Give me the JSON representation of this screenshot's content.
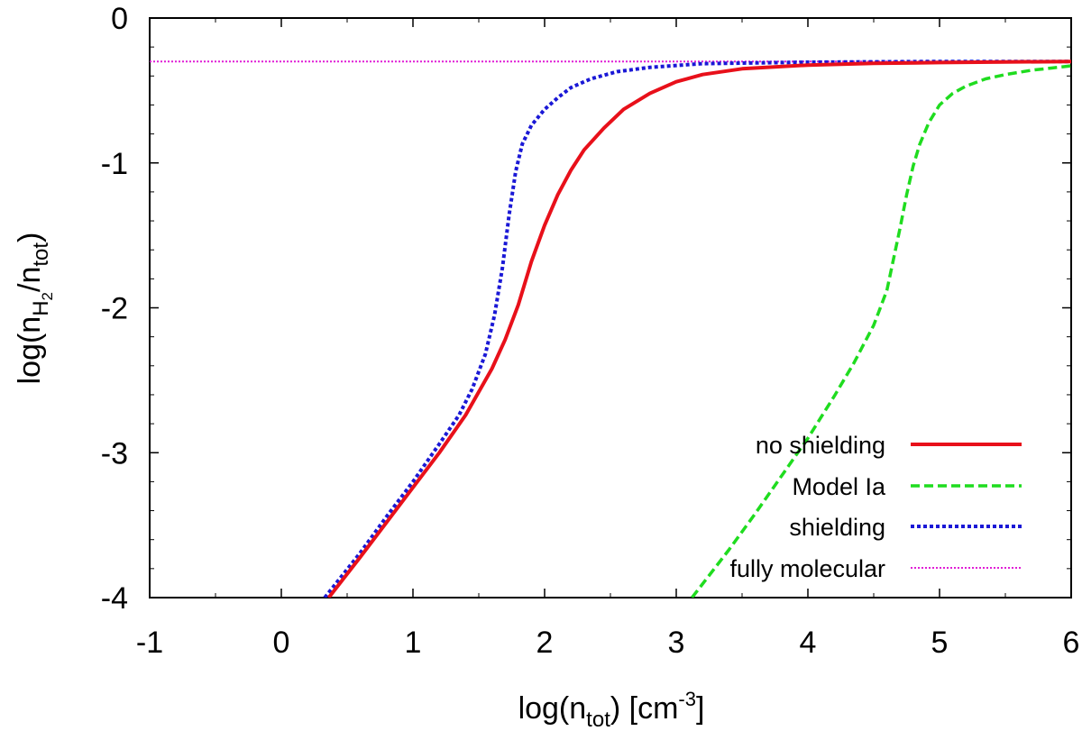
{
  "chart_data": {
    "type": "line",
    "title": "",
    "xlabel": {
      "prefix": "log(n",
      "subscript": "tot",
      "middle": ") [cm",
      "superscript": "-3",
      "suffix": "]"
    },
    "ylabel": {
      "prefix": "log(n",
      "subscript": "H",
      "subsubscript": "2",
      "middle": "/n",
      "subscript2": "tot",
      "suffix": ")"
    },
    "xlim": [
      -1,
      6
    ],
    "ylim": [
      -4,
      0
    ],
    "xticks": [
      -1,
      0,
      1,
      2,
      3,
      4,
      5,
      6
    ],
    "yticks": [
      0,
      -1,
      -2,
      -3,
      -4
    ],
    "xtick_labels": [
      "-1",
      "0",
      "1",
      "2",
      "3",
      "4",
      "5",
      "6"
    ],
    "ytick_labels": [
      "0",
      "-1",
      "-2",
      "-3",
      "-4"
    ],
    "grid": false,
    "legend_position": "bottom-right",
    "series": [
      {
        "name": "no shielding",
        "color": "#e8101a",
        "dash": "solid",
        "points": [
          [
            0.36,
            -4.0
          ],
          [
            0.6,
            -3.72
          ],
          [
            0.8,
            -3.48
          ],
          [
            1.0,
            -3.24
          ],
          [
            1.2,
            -3.0
          ],
          [
            1.4,
            -2.74
          ],
          [
            1.6,
            -2.42
          ],
          [
            1.7,
            -2.22
          ],
          [
            1.8,
            -1.98
          ],
          [
            1.9,
            -1.68
          ],
          [
            2.0,
            -1.43
          ],
          [
            2.1,
            -1.22
          ],
          [
            2.2,
            -1.05
          ],
          [
            2.3,
            -0.91
          ],
          [
            2.45,
            -0.76
          ],
          [
            2.6,
            -0.63
          ],
          [
            2.8,
            -0.52
          ],
          [
            3.0,
            -0.44
          ],
          [
            3.2,
            -0.39
          ],
          [
            3.5,
            -0.35
          ],
          [
            4.0,
            -0.325
          ],
          [
            4.5,
            -0.313
          ],
          [
            5.0,
            -0.307
          ],
          [
            6.0,
            -0.3
          ]
        ]
      },
      {
        "name": "Model Ia",
        "color": "#1fdc1f",
        "dash": "dashed",
        "points": [
          [
            3.12,
            -4.0
          ],
          [
            3.4,
            -3.67
          ],
          [
            3.6,
            -3.42
          ],
          [
            3.8,
            -3.16
          ],
          [
            4.0,
            -2.9
          ],
          [
            4.2,
            -2.61
          ],
          [
            4.35,
            -2.38
          ],
          [
            4.5,
            -2.12
          ],
          [
            4.6,
            -1.88
          ],
          [
            4.7,
            -1.45
          ],
          [
            4.75,
            -1.22
          ],
          [
            4.8,
            -1.02
          ],
          [
            4.85,
            -0.87
          ],
          [
            4.92,
            -0.72
          ],
          [
            5.0,
            -0.6
          ],
          [
            5.1,
            -0.52
          ],
          [
            5.2,
            -0.47
          ],
          [
            5.35,
            -0.42
          ],
          [
            5.5,
            -0.39
          ],
          [
            5.7,
            -0.36
          ],
          [
            5.85,
            -0.345
          ],
          [
            6.0,
            -0.33
          ]
        ]
      },
      {
        "name": "shielding",
        "color": "#1a18d6",
        "dash": "dotted",
        "points": [
          [
            0.33,
            -4.0
          ],
          [
            0.6,
            -3.69
          ],
          [
            0.8,
            -3.44
          ],
          [
            1.0,
            -3.2
          ],
          [
            1.2,
            -2.94
          ],
          [
            1.35,
            -2.74
          ],
          [
            1.45,
            -2.56
          ],
          [
            1.55,
            -2.32
          ],
          [
            1.62,
            -2.05
          ],
          [
            1.68,
            -1.72
          ],
          [
            1.73,
            -1.36
          ],
          [
            1.78,
            -1.06
          ],
          [
            1.83,
            -0.87
          ],
          [
            1.9,
            -0.74
          ],
          [
            2.0,
            -0.63
          ],
          [
            2.1,
            -0.55
          ],
          [
            2.2,
            -0.48
          ],
          [
            2.35,
            -0.42
          ],
          [
            2.55,
            -0.37
          ],
          [
            2.8,
            -0.34
          ],
          [
            3.2,
            -0.315
          ],
          [
            4.0,
            -0.305
          ],
          [
            5.0,
            -0.3
          ],
          [
            6.0,
            -0.3
          ]
        ]
      },
      {
        "name": "fully molecular",
        "color": "#e01ed6",
        "dash": "finedot",
        "points": [
          [
            -1.0,
            -0.3
          ],
          [
            6.0,
            -0.3
          ]
        ]
      }
    ]
  }
}
